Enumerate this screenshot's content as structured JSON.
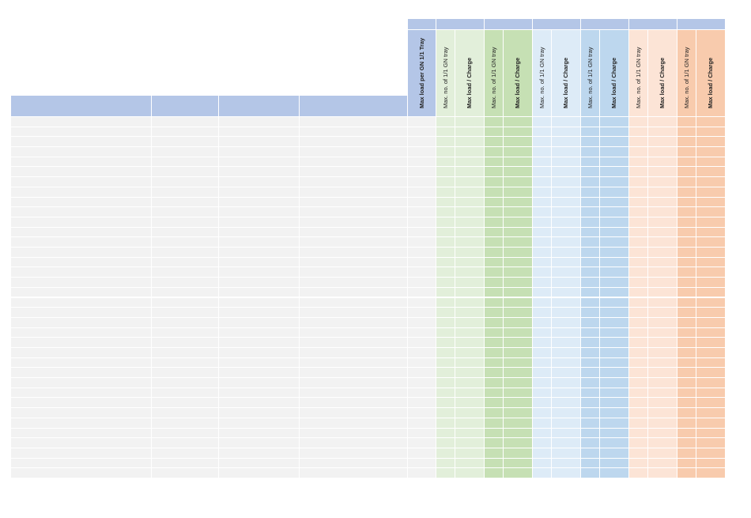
{
  "sheet": {
    "columns": {
      "load_per_tray": {
        "header": "Max load per GN 1/1 Tray",
        "header_color": "#b4c6e7",
        "body_color": "#f2f2f2"
      },
      "groups": [
        {
          "name": "group-1",
          "top_color": "#b4c6e7",
          "trays_label": "Max. no. of 1/1 GN tray",
          "load_label": "Max load  / Charge",
          "trays_color": "#e2efda",
          "load_color": "#e2efda"
        },
        {
          "name": "group-2",
          "top_color": "#b4c6e7",
          "trays_label": "Max. no. of 1/1 GN tray",
          "load_label": "Max load  / Charge",
          "trays_color": "#c6e0b4",
          "load_color": "#c6e0b4"
        },
        {
          "name": "group-3",
          "top_color": "#b4c6e7",
          "trays_label": "Max. no. of 1/1 GN tray",
          "load_label": "Max load  / Charge",
          "trays_color": "#ddebf7",
          "load_color": "#ddebf7"
        },
        {
          "name": "group-4",
          "top_color": "#b4c6e7",
          "trays_label": "Max. no. of 1/1 GN tray",
          "load_label": "Max load  / Charge",
          "trays_color": "#bdd7ee",
          "load_color": "#bdd7ee"
        },
        {
          "name": "group-5",
          "top_color": "#b4c6e7",
          "trays_label": "Max. no. of 1/1 GN tray",
          "load_label": "Max load  / Charge",
          "trays_color": "#fce4d6",
          "load_color": "#fce4d6"
        },
        {
          "name": "group-6",
          "top_color": "#b4c6e7",
          "trays_label": "Max. no. of 1/1 GN tray",
          "load_label": "Max load  / Charge",
          "trays_color": "#f8cbad",
          "load_color": "#f8cbad"
        }
      ],
      "left_header_color": "#b4c6e7",
      "left_body_color": "#f2f2f2",
      "grid_color": "#ffffff"
    }
  }
}
